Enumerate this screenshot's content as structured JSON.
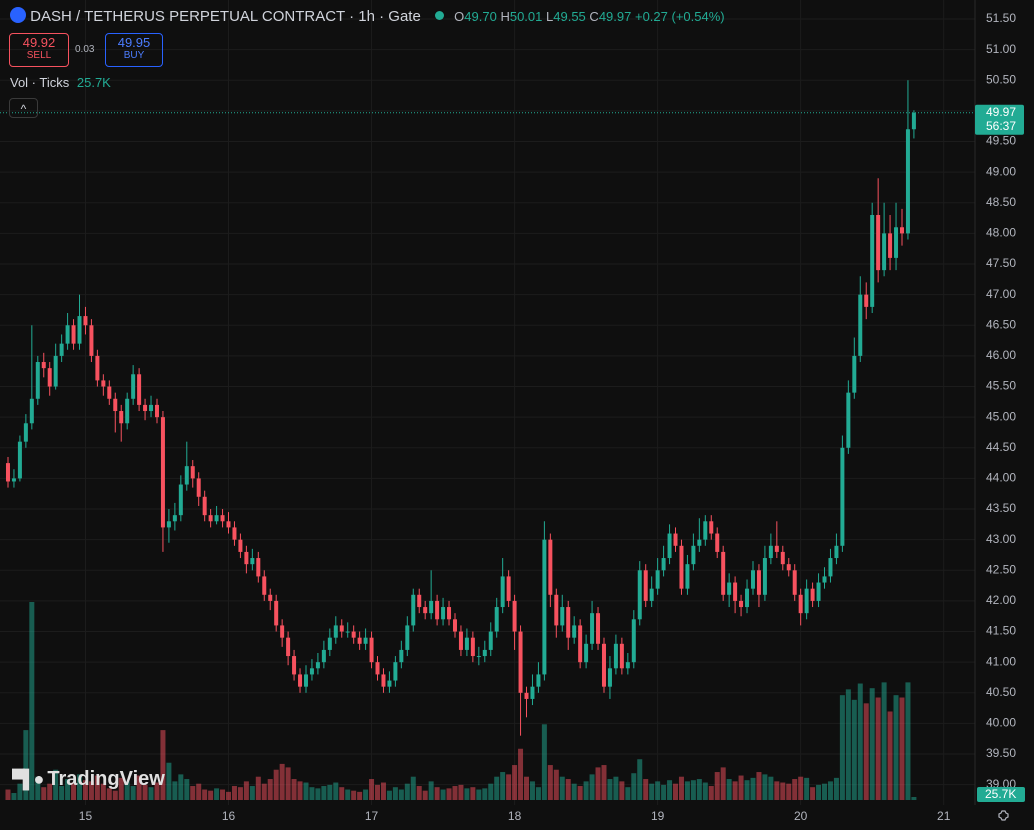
{
  "header": {
    "title": "DASH / TETHERUS PERPETUAL CONTRACT · 1h · Gate",
    "legend": {
      "o_label": "O",
      "o": "49.70",
      "h_label": "H",
      "h": "50.01",
      "l_label": "L",
      "l": "49.55",
      "c_label": "C",
      "c": "49.97",
      "change": "+0.27 (+0.54%)"
    }
  },
  "trade": {
    "sell_price": "49.92",
    "sell": "SELL",
    "spread": "0.03",
    "buy_price": "49.95",
    "buy": "BUY"
  },
  "indicator": {
    "name": "Vol · Ticks"
  },
  "watermark": "TradingView",
  "chart_data": {
    "type": "candlestick",
    "up_color": "#22ab94",
    "down_color": "#f7525f",
    "grid": true,
    "ylim": [
      38.75,
      51.81
    ],
    "yticks": [
      {
        "value": 39,
        "label": "39.00"
      },
      {
        "value": 39.5,
        "label": "39.50"
      },
      {
        "value": 40,
        "label": "40.00"
      },
      {
        "value": 40.5,
        "label": "40.50"
      },
      {
        "value": 41,
        "label": "41.00"
      },
      {
        "value": 41.5,
        "label": "41.50"
      },
      {
        "value": 42,
        "label": "42.00"
      },
      {
        "value": 42.5,
        "label": "42.50"
      },
      {
        "value": 43,
        "label": "43.00"
      },
      {
        "value": 43.5,
        "label": "43.50"
      },
      {
        "value": 44,
        "label": "44.00"
      },
      {
        "value": 44.5,
        "label": "44.50"
      },
      {
        "value": 45,
        "label": "45.00"
      },
      {
        "value": 45.5,
        "label": "45.50"
      },
      {
        "value": 46,
        "label": "46.00"
      },
      {
        "value": 46.5,
        "label": "46.50"
      },
      {
        "value": 47,
        "label": "47.00"
      },
      {
        "value": 47.5,
        "label": "47.50"
      },
      {
        "value": 48,
        "label": "48.00"
      },
      {
        "value": 48.5,
        "label": "48.50"
      },
      {
        "value": 49,
        "label": "49.00"
      },
      {
        "value": 49.5,
        "label": "49.50"
      },
      {
        "value": 50,
        "label": "50.00"
      },
      {
        "value": 50.5,
        "label": "50.50"
      },
      {
        "value": 51,
        "label": "51.00"
      },
      {
        "value": 51.5,
        "label": "51.50"
      }
    ],
    "xlim": [
      -1.34,
      162.25
    ],
    "xticks": [
      {
        "value": 13,
        "label": "15"
      },
      {
        "value": 37,
        "label": "16"
      },
      {
        "value": 61,
        "label": "17"
      },
      {
        "value": 85,
        "label": "18"
      },
      {
        "value": 109,
        "label": "19"
      },
      {
        "value": 133,
        "label": "20"
      },
      {
        "value": 157,
        "label": "21"
      }
    ],
    "open": [
      44.25,
      43.95,
      44,
      44.6,
      44.9,
      45.3,
      45.9,
      45.8,
      45.5,
      46,
      46.2,
      46.5,
      46.2,
      46.65,
      46.5,
      46,
      45.6,
      45.5,
      45.3,
      45.1,
      44.9,
      45.3,
      45.7,
      45.2,
      45.1,
      45.2,
      45,
      43.2,
      43.3,
      43.4,
      43.9,
      44.2,
      44,
      43.7,
      43.4,
      43.3,
      43.4,
      43.3,
      43.2,
      43,
      42.8,
      42.6,
      42.7,
      42.4,
      42.1,
      42,
      41.6,
      41.4,
      41.1,
      40.8,
      40.6,
      40.8,
      40.9,
      41,
      41.2,
      41.4,
      41.6,
      41.5,
      41.5,
      41.4,
      41.3,
      41.4,
      41,
      40.8,
      40.6,
      40.7,
      41,
      41.2,
      41.6,
      42.1,
      41.9,
      41.8,
      42,
      41.7,
      41.9,
      41.7,
      41.5,
      41.2,
      41.4,
      41.1,
      41.1,
      41.2,
      41.5,
      41.9,
      42.4,
      42,
      41.5,
      40.5,
      40.4,
      40.6,
      40.8,
      43,
      42.1,
      41.6,
      41.9,
      41.4,
      41.6,
      41,
      41.3,
      41.8,
      41.3,
      40.6,
      40.9,
      41.3,
      40.9,
      41,
      41.7,
      42.5,
      42,
      42.2,
      42.5,
      42.7,
      43.1,
      42.9,
      42.2,
      42.6,
      42.9,
      43,
      43.3,
      43.1,
      42.8,
      42.1,
      42.3,
      42,
      41.9,
      42.2,
      42.5,
      42.1,
      42.7,
      42.9,
      42.8,
      42.6,
      42.5,
      42.1,
      41.8,
      42.2,
      42,
      42.3,
      42.4,
      42.7,
      42.9,
      44.5,
      45.4,
      46,
      47,
      46.8,
      48.3,
      47.4,
      48,
      47.6,
      48.1,
      48,
      49.7
    ],
    "high": [
      44.35,
      44.15,
      44.7,
      45.05,
      46.5,
      46,
      46.05,
      45.9,
      46.2,
      46.35,
      46.7,
      46.6,
      47,
      46.8,
      46.6,
      46.1,
      45.7,
      45.6,
      45.4,
      45.2,
      45.4,
      45.85,
      45.8,
      45.3,
      45.35,
      45.3,
      45.1,
      43.5,
      43.6,
      44.05,
      44.6,
      44.3,
      44.1,
      43.8,
      43.5,
      43.55,
      43.5,
      43.45,
      43.3,
      43.1,
      42.9,
      42.85,
      42.8,
      42.5,
      42.2,
      42.1,
      41.7,
      41.5,
      41.2,
      40.9,
      40.95,
      41.05,
      41.15,
      41.35,
      41.55,
      41.75,
      41.7,
      41.65,
      41.6,
      41.5,
      41.55,
      41.5,
      41.1,
      40.9,
      40.85,
      41.1,
      41.35,
      41.75,
      42.2,
      42.2,
      42,
      42.5,
      42.1,
      42.05,
      42,
      41.8,
      41.6,
      41.55,
      41.5,
      41.25,
      41.35,
      41.65,
      42.05,
      42.7,
      42.5,
      42.1,
      41.6,
      40.6,
      40.8,
      41,
      43.3,
      43.1,
      42.2,
      42.1,
      42,
      41.75,
      41.7,
      41.45,
      42,
      41.9,
      41.4,
      41.1,
      41.45,
      41.4,
      41.15,
      41.85,
      42.65,
      42.6,
      42.4,
      42.7,
      42.9,
      43.25,
      43.2,
      43,
      42.75,
      43.1,
      43.35,
      43.4,
      43.4,
      43.2,
      42.9,
      42.45,
      42.4,
      42.1,
      42.35,
      42.65,
      42.6,
      42.9,
      43.1,
      43.3,
      42.9,
      42.7,
      42.6,
      42.2,
      42.35,
      42.3,
      42.45,
      42.55,
      42.85,
      43.1,
      44.7,
      45.6,
      46.3,
      47.3,
      47.2,
      48.5,
      48.9,
      48.5,
      48.3,
      48.5,
      48.4,
      50.5,
      50.01
    ],
    "low": [
      43.85,
      43.85,
      43.95,
      44.5,
      44.8,
      45.2,
      45.65,
      45.35,
      45.45,
      45.9,
      46.1,
      46.1,
      46.1,
      46.35,
      45.9,
      45.5,
      45.35,
      45.2,
      44.75,
      44.6,
      44.8,
      45.2,
      45.1,
      44.95,
      45,
      44.9,
      42.8,
      42.95,
      43.15,
      43.3,
      43.8,
      43.85,
      43.55,
      43.3,
      43.2,
      43.25,
      43.2,
      43.1,
      42.9,
      42.7,
      42.45,
      42.5,
      42.3,
      42,
      41.85,
      41.5,
      41.25,
      40.95,
      40.7,
      40.5,
      40.5,
      40.7,
      40.8,
      40.9,
      41.1,
      41.3,
      41.4,
      41.4,
      41.3,
      41.2,
      41.2,
      40.9,
      40.7,
      40.5,
      40.5,
      40.6,
      40.9,
      41.1,
      41.5,
      41.8,
      41.7,
      41.7,
      41.6,
      41.6,
      41.6,
      41.4,
      41.1,
      41.1,
      41,
      40.95,
      41,
      41.1,
      41.4,
      41.8,
      41.9,
      41.2,
      39.8,
      40.1,
      40.3,
      40.5,
      40.7,
      41.9,
      41.4,
      41.5,
      41.2,
      41.3,
      40.9,
      40.9,
      41.2,
      41.2,
      40.5,
      40.4,
      40.8,
      40.8,
      40.8,
      40.9,
      41.6,
      41.9,
      41.9,
      42.1,
      42.4,
      42.6,
      42.8,
      42.1,
      42.1,
      42.5,
      42.8,
      42.9,
      43,
      42.7,
      42,
      41.9,
      41.8,
      41.75,
      41.8,
      42.1,
      41.9,
      42,
      42.6,
      42.7,
      42.5,
      42.4,
      42,
      41.6,
      41.7,
      41.9,
      41.9,
      42.2,
      42.3,
      42.6,
      42.8,
      44.4,
      45.3,
      45.9,
      46.6,
      46.7,
      47.2,
      47.3,
      47.4,
      47.4,
      47.8,
      47.9,
      49.55
    ],
    "close": [
      43.95,
      44,
      44.6,
      44.9,
      45.3,
      45.9,
      45.8,
      45.5,
      46,
      46.2,
      46.5,
      46.2,
      46.65,
      46.5,
      46,
      45.6,
      45.5,
      45.3,
      45.1,
      44.9,
      45.3,
      45.7,
      45.2,
      45.1,
      45.2,
      45,
      43.2,
      43.3,
      43.4,
      43.9,
      44.2,
      44,
      43.7,
      43.4,
      43.3,
      43.4,
      43.3,
      43.2,
      43,
      42.8,
      42.6,
      42.7,
      42.4,
      42.1,
      42,
      41.6,
      41.4,
      41.1,
      40.8,
      40.6,
      40.8,
      40.9,
      41,
      41.2,
      41.4,
      41.6,
      41.5,
      41.5,
      41.4,
      41.3,
      41.4,
      41,
      40.8,
      40.6,
      40.7,
      41,
      41.2,
      41.6,
      42.1,
      41.9,
      41.8,
      42,
      41.7,
      41.9,
      41.7,
      41.5,
      41.2,
      41.4,
      41.1,
      41.1,
      41.2,
      41.5,
      41.9,
      42.4,
      42,
      41.5,
      40.5,
      40.4,
      40.6,
      40.8,
      43,
      42.1,
      41.6,
      41.9,
      41.4,
      41.6,
      41,
      41.3,
      41.8,
      41.3,
      40.6,
      40.9,
      41.3,
      40.9,
      41,
      41.7,
      42.5,
      42,
      42.2,
      42.5,
      42.7,
      43.1,
      42.9,
      42.2,
      42.6,
      42.9,
      43,
      43.3,
      43.1,
      42.8,
      42.1,
      42.3,
      42,
      41.9,
      42.2,
      42.5,
      42.1,
      42.7,
      42.9,
      42.8,
      42.6,
      42.5,
      42.1,
      41.8,
      42.2,
      42,
      42.3,
      42.4,
      42.7,
      42.9,
      44.5,
      45.4,
      46,
      47,
      46.8,
      48.3,
      47.4,
      48,
      47.6,
      48.1,
      48,
      49.7,
      49.97
    ],
    "volume": [
      90000,
      60000,
      140000,
      600000,
      1700000,
      200000,
      110000,
      140000,
      260000,
      120000,
      180000,
      150000,
      220000,
      170000,
      160000,
      210000,
      140000,
      100000,
      80000,
      190000,
      160000,
      120000,
      210000,
      130000,
      110000,
      150000,
      600000,
      320000,
      160000,
      220000,
      180000,
      120000,
      140000,
      90000,
      80000,
      100000,
      90000,
      70000,
      120000,
      110000,
      160000,
      120000,
      200000,
      140000,
      180000,
      260000,
      310000,
      280000,
      180000,
      160000,
      150000,
      110000,
      100000,
      120000,
      130000,
      150000,
      110000,
      90000,
      80000,
      70000,
      90000,
      180000,
      130000,
      150000,
      80000,
      110000,
      90000,
      140000,
      200000,
      120000,
      80000,
      160000,
      110000,
      90000,
      100000,
      120000,
      130000,
      100000,
      110000,
      90000,
      100000,
      140000,
      200000,
      240000,
      220000,
      300000,
      440000,
      200000,
      160000,
      110000,
      650000,
      300000,
      260000,
      200000,
      180000,
      140000,
      120000,
      160000,
      220000,
      280000,
      300000,
      180000,
      200000,
      160000,
      110000,
      230000,
      350000,
      180000,
      140000,
      160000,
      130000,
      170000,
      140000,
      200000,
      160000,
      170000,
      180000,
      150000,
      120000,
      240000,
      280000,
      180000,
      160000,
      210000,
      170000,
      190000,
      240000,
      220000,
      200000,
      160000,
      150000,
      140000,
      180000,
      200000,
      190000,
      110000,
      130000,
      140000,
      160000,
      190000,
      900000,
      950000,
      860000,
      1000000,
      830000,
      960000,
      880000,
      1010000,
      760000,
      900000,
      880000,
      1010000,
      25700
    ],
    "volume_label": "25.7K",
    "price_tag": {
      "price": "49.97",
      "countdown": "56:37"
    }
  }
}
